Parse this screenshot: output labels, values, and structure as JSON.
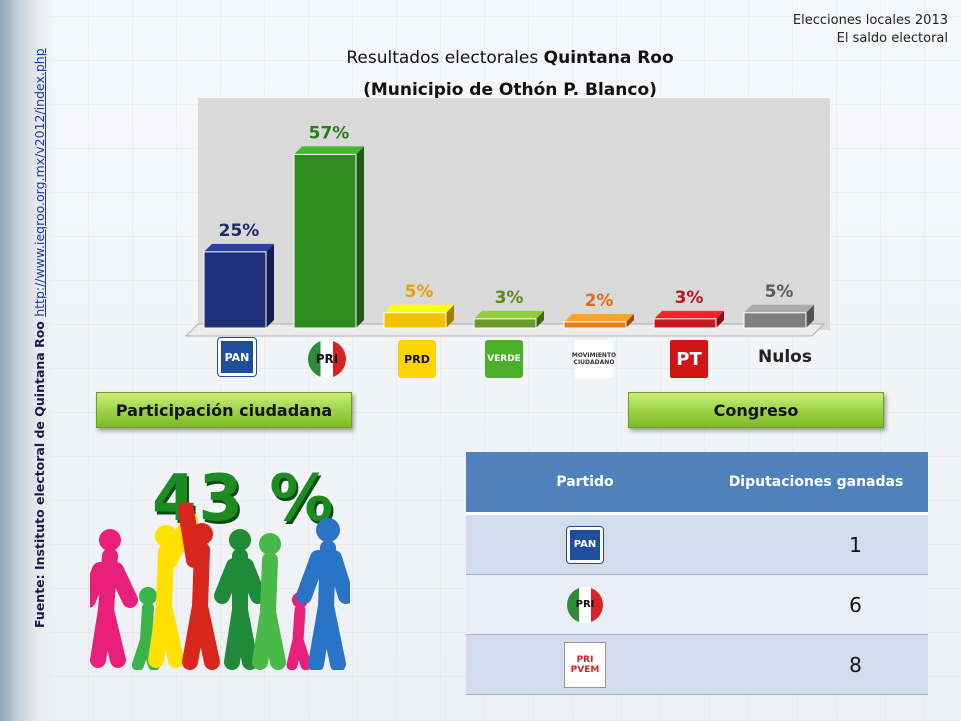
{
  "header": {
    "line1": "Elecciones locales 2013",
    "line2": "El saldo electoral"
  },
  "title": {
    "prefix": "Resultados electorales ",
    "bold": "Quintana Roo",
    "subtitle": "(Municipio de Othón P. Blanco)"
  },
  "source": {
    "label": "Fuente: Instituto electoral de Quintana Roo ",
    "link": "http://www.ieqroo.org.mx/v2012/index.php"
  },
  "chart_data": {
    "type": "bar",
    "categories": [
      "PAN",
      "PRI",
      "PRD",
      "VERDE",
      "MOVIMIENTO CIUDADANO",
      "PT",
      "Nulos"
    ],
    "values": [
      25,
      57,
      5,
      3,
      2,
      3,
      5
    ],
    "value_labels": [
      "25%",
      "57%",
      "5%",
      "3%",
      "2%",
      "3%",
      "5%"
    ],
    "colors": [
      "#1f2f7a",
      "#2e8b1e",
      "#f2c200",
      "#6b9a2a",
      "#e87a1a",
      "#c8181e",
      "#7f7f7f"
    ],
    "label_colors": [
      "#1a2a6c",
      "#2a7a1a",
      "#e8a000",
      "#5a8a1a",
      "#e86a10",
      "#c0141c",
      "#5a5a5a"
    ],
    "ylim": [
      0,
      65
    ],
    "title": "Resultados electorales Quintana Roo",
    "xlabel": "",
    "ylabel": ""
  },
  "logos": {
    "pan": "PAN",
    "pri": "PRI",
    "prd": "PRD",
    "verde": "VERDE",
    "mc": "MOVIMIENTO CIUDADANO",
    "pt": "PT",
    "nulos": "Nulos"
  },
  "participation": {
    "button_label": "Participación ciudadana",
    "value": "43 %"
  },
  "congress": {
    "button_label": "Congreso",
    "table": {
      "headers": [
        "Partido",
        "Diputaciones ganadas"
      ],
      "rows": [
        {
          "party": "PAN",
          "seats": "1"
        },
        {
          "party": "PRI",
          "seats": "6"
        },
        {
          "party": "PRI PVEM",
          "seats": "8"
        }
      ]
    }
  }
}
